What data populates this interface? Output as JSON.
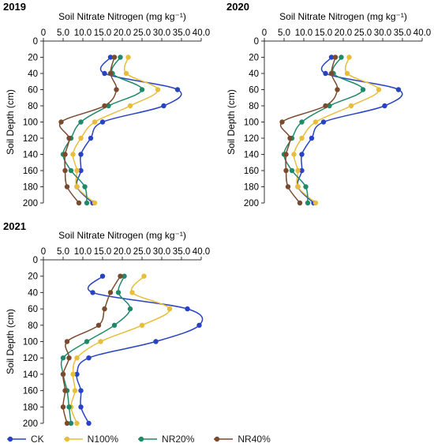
{
  "chart_data": [
    {
      "type": "line",
      "panel_label": "2019",
      "title": "",
      "xlabel": "Soil Nitrate Nitrogen  (mg kg⁻¹)",
      "ylabel": "Soil Depth (cm)",
      "x_axis_position": "top",
      "y_inverted": true,
      "xlim": [
        0,
        40
      ],
      "ylim": [
        0,
        200
      ],
      "xticks": [
        "0",
        "5.0",
        "10.0",
        "15.0",
        "20.0",
        "25.0",
        "30.0",
        "35.0",
        "40.0"
      ],
      "yticks": [
        "0",
        "20",
        "40",
        "60",
        "80",
        "100",
        "120",
        "140",
        "160",
        "180",
        "200"
      ],
      "grid": false,
      "y": [
        20,
        40,
        60,
        80,
        100,
        120,
        140,
        160,
        180,
        200
      ],
      "series": [
        {
          "name": "CK",
          "x": [
            17.0,
            15.5,
            34.0,
            30.5,
            15.0,
            12.0,
            9.5,
            9.5,
            8.5,
            12.5
          ]
        },
        {
          "name": "N100%",
          "x": [
            21.5,
            21.0,
            29.0,
            22.0,
            13.0,
            9.5,
            7.5,
            8.5,
            8.5,
            13.0
          ]
        },
        {
          "name": "NR20%",
          "x": [
            19.5,
            17.5,
            25.0,
            16.5,
            9.5,
            7.0,
            5.0,
            7.0,
            10.5,
            11.0
          ]
        },
        {
          "name": "NR40%",
          "x": [
            18.0,
            17.0,
            18.5,
            15.5,
            4.5,
            6.5,
            5.5,
            5.5,
            6.0,
            9.0
          ]
        }
      ]
    },
    {
      "type": "line",
      "panel_label": "2020",
      "title": "",
      "xlabel": "Soil Nitrate Nitrogen  (mg kg⁻¹)",
      "ylabel": "Soil Depth (cm)",
      "x_axis_position": "top",
      "y_inverted": true,
      "xlim": [
        0,
        40
      ],
      "ylim": [
        0,
        200
      ],
      "xticks": [
        "0",
        "5.0",
        "10.0",
        "15.0",
        "20.0",
        "25.0",
        "30.0",
        "35.0",
        "40.0"
      ],
      "yticks": [
        "0",
        "20",
        "40",
        "60",
        "80",
        "100",
        "120",
        "140",
        "160",
        "180",
        "200"
      ],
      "grid": false,
      "y": [
        20,
        40,
        60,
        80,
        100,
        120,
        140,
        160,
        180,
        200
      ],
      "series": [
        {
          "name": "CK",
          "x": [
            17.0,
            15.5,
            34.0,
            30.5,
            15.0,
            12.0,
            9.5,
            9.5,
            8.5,
            12.5
          ]
        },
        {
          "name": "N100%",
          "x": [
            21.5,
            21.0,
            29.0,
            22.0,
            13.0,
            9.5,
            7.5,
            8.5,
            8.5,
            13.0
          ]
        },
        {
          "name": "NR20%",
          "x": [
            19.5,
            17.5,
            25.0,
            16.5,
            9.5,
            7.0,
            5.0,
            7.0,
            10.5,
            11.0
          ]
        },
        {
          "name": "NR40%",
          "x": [
            18.0,
            17.0,
            18.5,
            15.5,
            4.5,
            6.5,
            5.5,
            5.5,
            6.0,
            9.0
          ]
        }
      ]
    },
    {
      "type": "line",
      "panel_label": "2021",
      "title": "",
      "xlabel": "Soil Nitrate Nitrogen  (mg kg⁻¹)",
      "ylabel": "Soil Depth (cm)",
      "x_axis_position": "top",
      "y_inverted": true,
      "xlim": [
        0,
        40
      ],
      "ylim": [
        0,
        200
      ],
      "xticks": [
        "0",
        "5.0",
        "10.0",
        "15.0",
        "20.0",
        "25.0",
        "30.0",
        "35.0",
        "40.0"
      ],
      "yticks": [
        "0",
        "20",
        "40",
        "60",
        "80",
        "100",
        "120",
        "140",
        "160",
        "180",
        "200"
      ],
      "grid": false,
      "y": [
        20,
        40,
        60,
        80,
        100,
        120,
        140,
        160,
        180,
        200
      ],
      "series": [
        {
          "name": "CK",
          "x": [
            15.0,
            12.5,
            36.5,
            39.5,
            28.5,
            11.5,
            8.5,
            9.5,
            9.5,
            11.5
          ]
        },
        {
          "name": "N100%",
          "x": [
            25.5,
            22.5,
            32.0,
            25.0,
            14.5,
            8.5,
            7.5,
            8.0,
            7.0,
            8.5
          ]
        },
        {
          "name": "NR20%",
          "x": [
            20.5,
            19.0,
            22.0,
            18.0,
            11.0,
            5.0,
            5.0,
            6.0,
            6.5,
            7.0
          ]
        },
        {
          "name": "NR40%",
          "x": [
            19.5,
            17.0,
            15.5,
            14.0,
            6.0,
            6.5,
            5.0,
            5.5,
            5.0,
            6.0
          ]
        }
      ]
    }
  ],
  "colors": {
    "CK": "#2742c4",
    "N100%": "#e8bd3a",
    "NR20%": "#1f8a6a",
    "NR40%": "#7a4a2e",
    "axis": "#333333"
  },
  "legend": {
    "placement": "bottom-left",
    "items": [
      "CK",
      "N100%",
      "NR20%",
      "NR40%"
    ]
  }
}
